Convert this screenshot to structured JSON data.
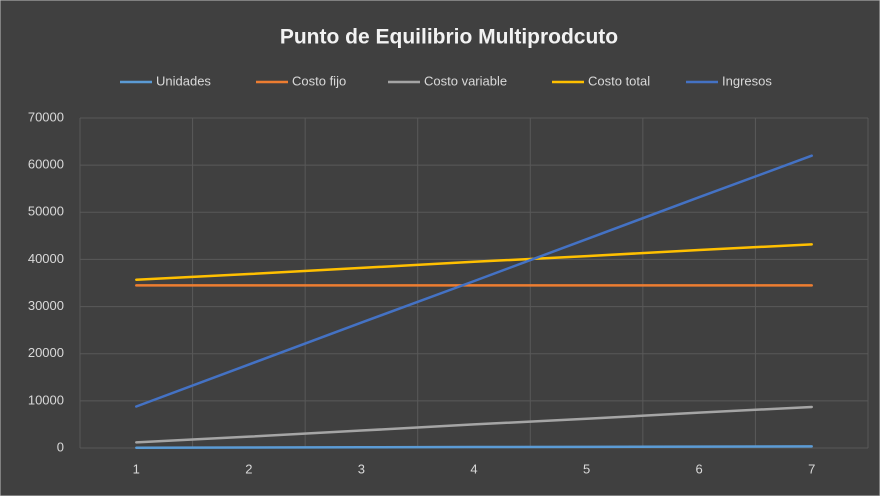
{
  "chart_data": {
    "type": "line",
    "title": "Punto de Equilibrio Multiprodcuto",
    "categories": [
      "1",
      "2",
      "3",
      "4",
      "5",
      "6",
      "7"
    ],
    "series": [
      {
        "name": "Unidades",
        "color": "#5b9bd5",
        "values": [
          50,
          100,
          150,
          200,
          250,
          300,
          350
        ]
      },
      {
        "name": "Costo fijo",
        "color": "#ed7d31",
        "values": [
          34500,
          34500,
          34500,
          34500,
          34500,
          34500,
          34500
        ]
      },
      {
        "name": "Costo variable",
        "color": "#a5a5a5",
        "values": [
          1200,
          2400,
          3700,
          5000,
          6200,
          7500,
          8700
        ]
      },
      {
        "name": "Costo total",
        "color": "#ffc000",
        "values": [
          35700,
          36900,
          38200,
          39500,
          40700,
          42000,
          43200
        ]
      },
      {
        "name": "Ingresos",
        "color": "#4472c4",
        "values": [
          8800,
          17700,
          26600,
          35400,
          44300,
          53200,
          62000
        ]
      }
    ],
    "ylim": [
      0,
      70000
    ],
    "yticks": [
      0,
      10000,
      20000,
      30000,
      40000,
      50000,
      60000,
      70000
    ],
    "grid": true,
    "legend": "top"
  }
}
